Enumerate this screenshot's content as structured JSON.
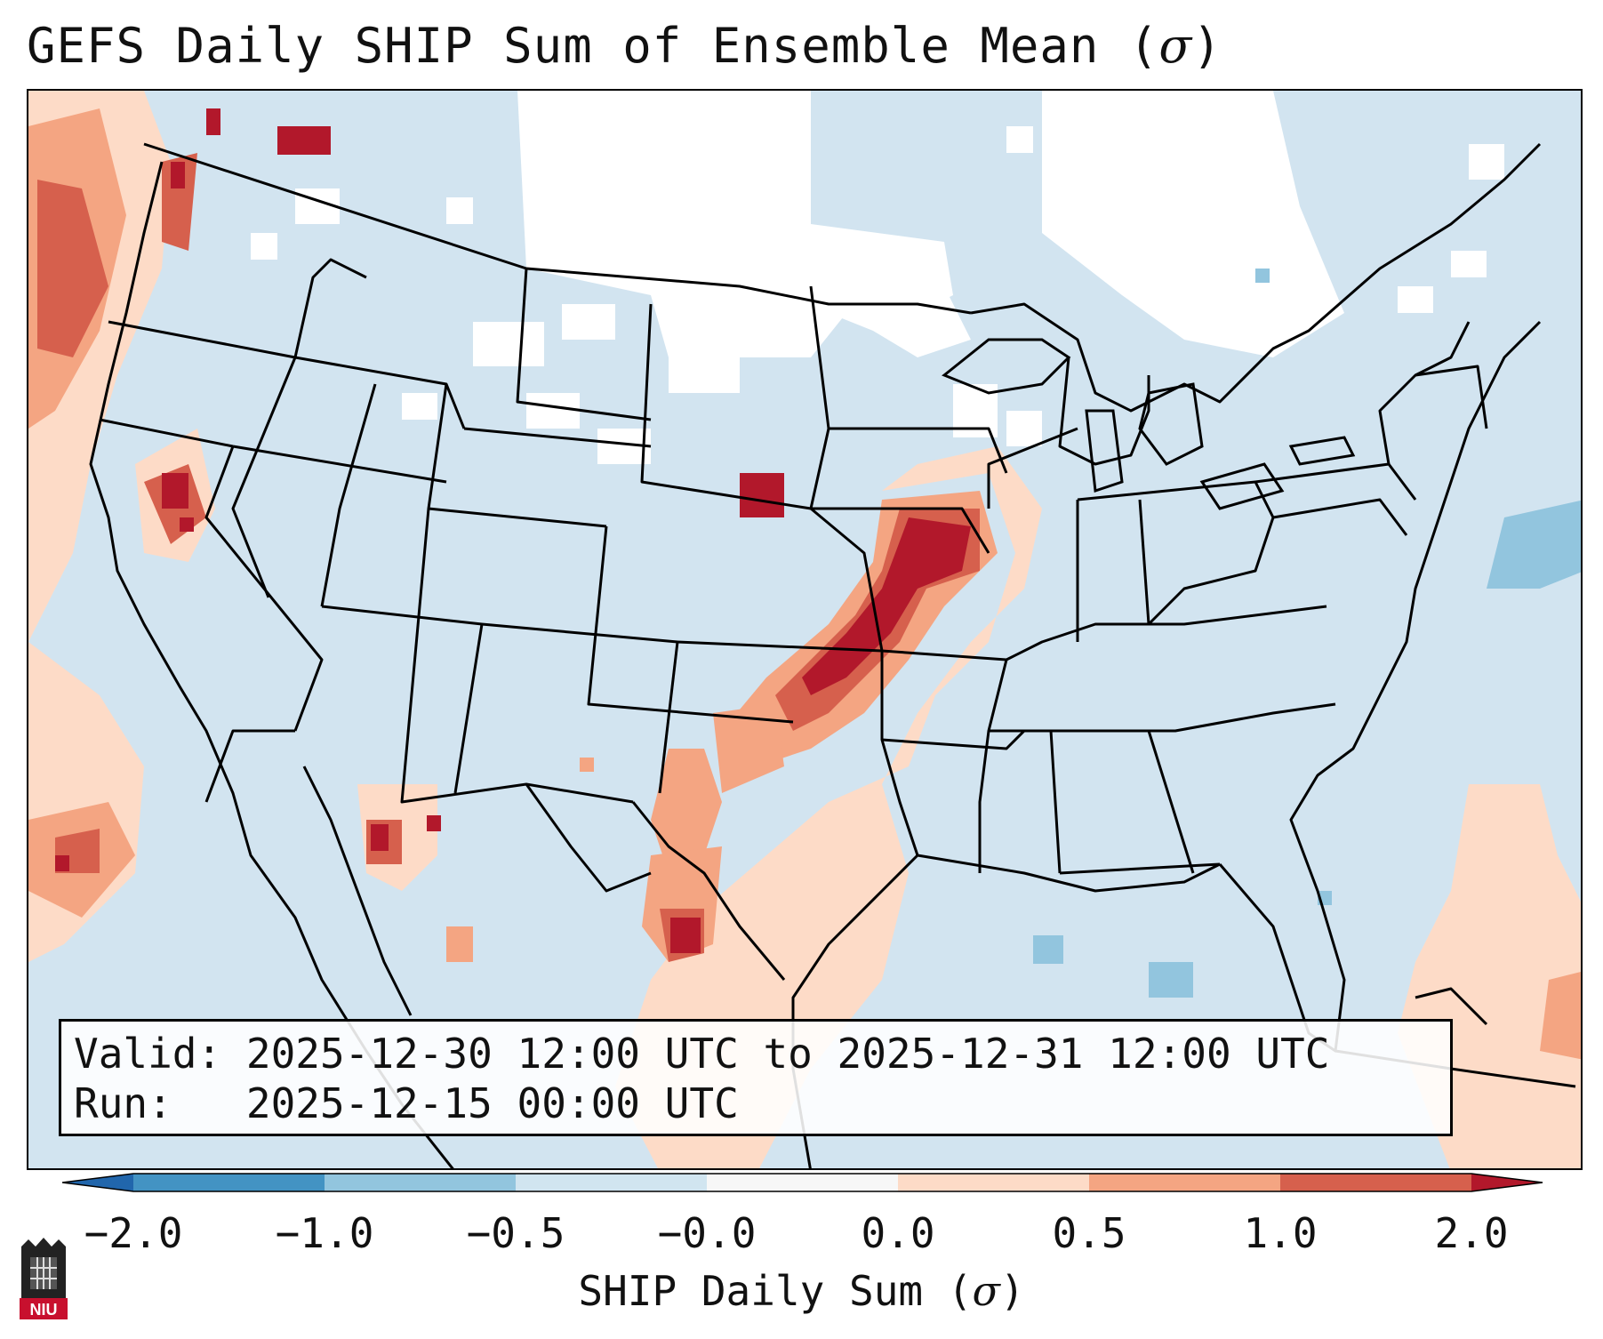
{
  "title": {
    "prefix": "GEFS Daily SHIP Sum of Ensemble Mean (",
    "symbol": "σ",
    "suffix": ")"
  },
  "info": {
    "valid_label": "Valid:",
    "valid_value": "2025-12-30 12:00 UTC to 2025-12-31 12:00 UTC",
    "run_label": "Run:",
    "run_value": "2025-12-15 00:00 UTC"
  },
  "colorbar": {
    "title_prefix": "SHIP Daily Sum (",
    "title_symbol": "σ",
    "title_suffix": ")",
    "tick_labels": [
      "−2.0",
      "−1.0",
      "−0.5",
      "−0.0",
      "0.0",
      "0.5",
      "1.0",
      "2.0"
    ],
    "colors": [
      "#2166ac",
      "#4393c3",
      "#92c5de",
      "#d1e5f0",
      "#f7f7f7",
      "#fddbc7",
      "#f4a582",
      "#d6604d",
      "#b2182b"
    ]
  },
  "logo": {
    "text": "NIU"
  },
  "map_colors": {
    "background": "#d2e4f0",
    "neutral": "#ffffff",
    "low": "#fddbc7",
    "mid": "#f4a582",
    "high": "#d6604d",
    "max": "#b2182b",
    "blue": "#92c5de"
  }
}
